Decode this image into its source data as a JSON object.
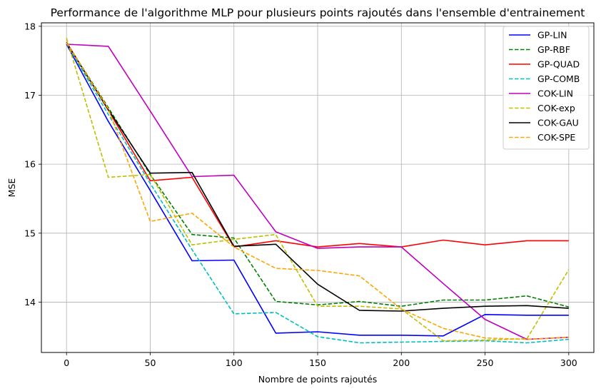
{
  "chart_data": {
    "type": "line",
    "title": "Performance de l'algorithme MLP pour plusieurs points rajoutés dans l'ensemble d'entrainement",
    "xlabel": "Nombre de points rajoutés",
    "ylabel": "MSE",
    "xlim": [
      -15,
      315
    ],
    "ylim": [
      13.27,
      18.05
    ],
    "xticks": [
      0,
      50,
      100,
      150,
      200,
      250,
      300
    ],
    "yticks": [
      14,
      15,
      16,
      17,
      18
    ],
    "grid": true,
    "legend_position": "top-right",
    "x": [
      0,
      25,
      50,
      75,
      100,
      125,
      150,
      175,
      200,
      225,
      250,
      275,
      300
    ],
    "series": [
      {
        "name": "GP-LIN",
        "color": "#0000ff",
        "dash": "solid",
        "values": [
          17.74,
          16.62,
          15.62,
          14.6,
          14.61,
          13.55,
          13.57,
          13.52,
          13.52,
          13.51,
          13.82,
          13.81,
          13.81
        ]
      },
      {
        "name": "GP-RBF",
        "color": "#008000",
        "dash": "dashed",
        "values": [
          17.76,
          16.82,
          15.85,
          14.98,
          14.93,
          14.01,
          13.96,
          14.01,
          13.94,
          14.03,
          14.03,
          14.09,
          13.93
        ]
      },
      {
        "name": "GP-QUAD",
        "color": "#ff0000",
        "dash": "solid",
        "values": [
          17.77,
          16.78,
          15.76,
          15.81,
          14.8,
          14.89,
          14.8,
          14.85,
          14.8,
          14.9,
          14.83,
          14.89,
          14.89
        ]
      },
      {
        "name": "GP-COMB",
        "color": "#00bfbf",
        "dash": "dashed",
        "values": [
          17.75,
          16.72,
          15.72,
          14.76,
          13.83,
          13.85,
          13.5,
          13.41,
          13.42,
          13.43,
          13.44,
          13.41,
          13.46
        ]
      },
      {
        "name": "COK-LIN",
        "color": "#bf00bf",
        "dash": "solid",
        "values": [
          17.74,
          17.71,
          16.77,
          15.82,
          15.84,
          15.02,
          14.78,
          14.8,
          14.8,
          14.27,
          13.75,
          13.46,
          13.49
        ]
      },
      {
        "name": "COK-exp",
        "color": "#bfbf00",
        "dash": "dashed",
        "values": [
          17.83,
          15.81,
          15.85,
          14.83,
          14.91,
          14.98,
          13.94,
          13.94,
          13.9,
          13.44,
          13.45,
          13.47,
          14.47
        ]
      },
      {
        "name": "COK-GAU",
        "color": "#000000",
        "dash": "solid",
        "values": [
          17.76,
          16.79,
          15.87,
          15.88,
          14.81,
          14.84,
          14.26,
          13.88,
          13.87,
          13.91,
          13.94,
          13.95,
          13.91
        ]
      },
      {
        "name": "COK-SPE",
        "color": "#ffa500",
        "dash": "dashed",
        "values": [
          17.76,
          16.8,
          15.17,
          15.29,
          14.8,
          14.49,
          14.46,
          14.38,
          13.9,
          13.62,
          13.48,
          13.46,
          13.49
        ]
      }
    ]
  }
}
